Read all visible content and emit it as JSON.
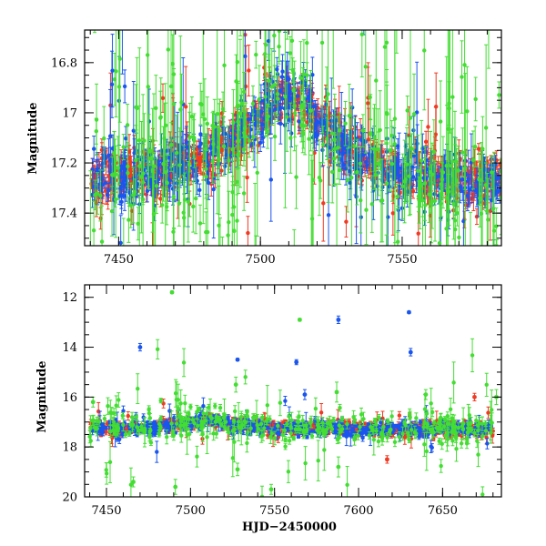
{
  "colors": {
    "green": "#44dd33",
    "blue": "#1a55ee",
    "red": "#f03a22"
  },
  "chart_data": [
    {
      "type": "scatter",
      "panel": "top",
      "xlabel": "",
      "ylabel": "Magnitude",
      "xlim": [
        7438,
        7585
      ],
      "ylim": [
        17.53,
        16.67
      ],
      "y_inverted": true,
      "xticks_major": [
        7450,
        7500,
        7550
      ],
      "xticks_minor_step": 10,
      "yticks_major": [
        16.8,
        17,
        17.2,
        17.4
      ],
      "ytick_labels": [
        "16.8",
        "17",
        "17.2",
        "17.4"
      ],
      "yticks_minor_step": 0.05,
      "trend": {
        "x": [
          7440,
          7450,
          7460,
          7470,
          7480,
          7490,
          7495,
          7500,
          7505,
          7510,
          7515,
          7520,
          7525,
          7530,
          7540,
          7550,
          7560,
          7570,
          7585
        ],
        "y": [
          17.27,
          17.26,
          17.24,
          17.22,
          17.18,
          17.12,
          17.07,
          17.0,
          16.94,
          16.92,
          16.96,
          17.02,
          17.08,
          17.14,
          17.2,
          17.23,
          17.25,
          17.27,
          17.27
        ]
      },
      "series": [
        {
          "color_key": "red",
          "scatter": 0.05,
          "errbar": 0.04,
          "outlier_frac": 0.08,
          "density": 1.0
        },
        {
          "color_key": "blue",
          "scatter": 0.06,
          "errbar": 0.05,
          "outlier_frac": 0.12,
          "density": 0.8
        },
        {
          "color_key": "green",
          "scatter": 0.15,
          "errbar": 0.12,
          "outlier_frac": 0.3,
          "density": 0.5
        }
      ]
    },
    {
      "type": "scatter",
      "panel": "bottom",
      "xlabel": "HJD−2450000",
      "ylabel": "Magnitude",
      "xlim": [
        7437,
        7685
      ],
      "ylim": [
        20,
        11.5
      ],
      "y_inverted": true,
      "xticks_major": [
        7450,
        7500,
        7550,
        7600,
        7650
      ],
      "xticks_minor_step": 10,
      "yticks_major": [
        12,
        14,
        16,
        18,
        20
      ],
      "ytick_labels": [
        "12",
        "14",
        "16",
        "18",
        "20"
      ],
      "yticks_minor_step": 0.5,
      "trend": {
        "x": [
          7440,
          7470,
          7490,
          7500,
          7510,
          7520,
          7540,
          7560,
          7600,
          7640,
          7680
        ],
        "y": [
          17.25,
          17.22,
          17.12,
          17.0,
          16.93,
          17.02,
          17.2,
          17.25,
          17.27,
          17.27,
          17.27
        ]
      },
      "series": [
        {
          "color_key": "red",
          "scatter": 0.12,
          "errbar": 0.1,
          "outlier_frac": 0.05,
          "density": 1.0
        },
        {
          "color_key": "blue",
          "scatter": 0.15,
          "errbar": 0.12,
          "outlier_frac": 0.08,
          "density": 0.8
        },
        {
          "color_key": "green",
          "scatter": 0.3,
          "errbar": 0.2,
          "outlier_frac": 0.15,
          "density": 0.5
        }
      ],
      "outliers": [
        {
          "color_key": "green",
          "x": 7489,
          "y": 11.8,
          "err": 0.05
        },
        {
          "color_key": "blue",
          "x": 7470,
          "y": 14.0,
          "err": 0.15
        },
        {
          "color_key": "blue",
          "x": 7528,
          "y": 14.5,
          "err": 0.05
        },
        {
          "color_key": "green",
          "x": 7565,
          "y": 12.9,
          "err": 0.05
        },
        {
          "color_key": "blue",
          "x": 7588,
          "y": 12.9,
          "err": 0.15
        },
        {
          "color_key": "blue",
          "x": 7630,
          "y": 12.6,
          "err": 0.05
        },
        {
          "color_key": "blue",
          "x": 7631,
          "y": 14.2,
          "err": 0.15
        },
        {
          "color_key": "blue",
          "x": 7563,
          "y": 14.6,
          "err": 0.1
        },
        {
          "color_key": "green",
          "x": 7466,
          "y": 19.4,
          "err": 0.2
        },
        {
          "color_key": "green",
          "x": 7491,
          "y": 19.6,
          "err": 0.3
        },
        {
          "color_key": "green",
          "x": 7548,
          "y": 19.7,
          "err": 0.2
        },
        {
          "color_key": "green",
          "x": 7528,
          "y": 18.9,
          "err": 0.25
        },
        {
          "color_key": "green",
          "x": 7588,
          "y": 18.8,
          "err": 0.4
        },
        {
          "color_key": "red",
          "x": 7617,
          "y": 18.5,
          "err": 0.15
        },
        {
          "color_key": "red",
          "x": 7669,
          "y": 16.0,
          "err": 0.15
        },
        {
          "color_key": "green",
          "x": 7682,
          "y": 16.0,
          "err": 0.3
        },
        {
          "color_key": "green",
          "x": 7527,
          "y": 15.5,
          "err": 0.3
        },
        {
          "color_key": "green",
          "x": 7587,
          "y": 15.8,
          "err": 0.4
        },
        {
          "color_key": "blue",
          "x": 7568,
          "y": 15.9,
          "err": 0.2
        },
        {
          "color_key": "green",
          "x": 7442,
          "y": 16.2,
          "err": 0.2
        },
        {
          "color_key": "green",
          "x": 7640,
          "y": 15.9,
          "err": 0.2
        }
      ]
    }
  ]
}
